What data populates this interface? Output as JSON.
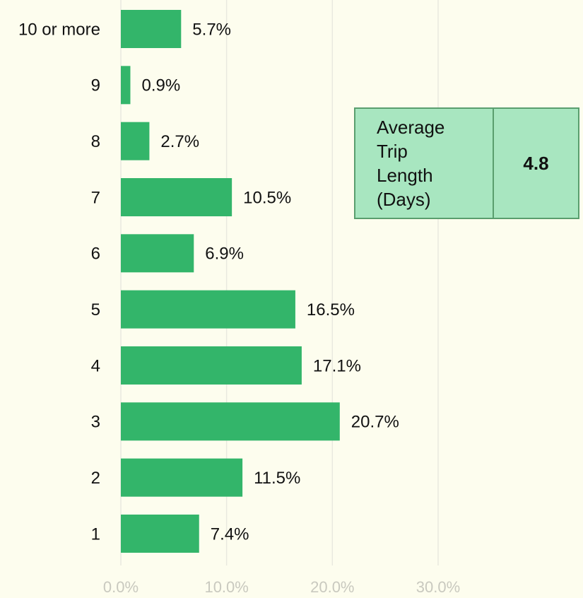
{
  "chart_data": {
    "type": "barh",
    "categories": [
      "10 or more",
      "9",
      "8",
      "7",
      "6",
      "5",
      "4",
      "3",
      "2",
      "1"
    ],
    "values": [
      5.7,
      0.9,
      2.7,
      10.5,
      6.9,
      16.5,
      17.1,
      20.7,
      11.5,
      7.4
    ],
    "value_labels": [
      "5.7%",
      "0.9%",
      "2.7%",
      "10.5%",
      "6.9%",
      "16.5%",
      "17.1%",
      "20.7%",
      "11.5%",
      "7.4%"
    ],
    "color": "#33b56a",
    "xlim": [
      0,
      43.7
    ],
    "xticks": [
      {
        "value": 0,
        "label": "0.0%"
      },
      {
        "value": 10,
        "label": "10.0%"
      },
      {
        "value": 20,
        "label": "20.0%"
      },
      {
        "value": 30,
        "label": "30.0%"
      }
    ],
    "grid": true,
    "annotation": {
      "label": "Average Trip Length (Days)",
      "value": 4.8
    }
  }
}
